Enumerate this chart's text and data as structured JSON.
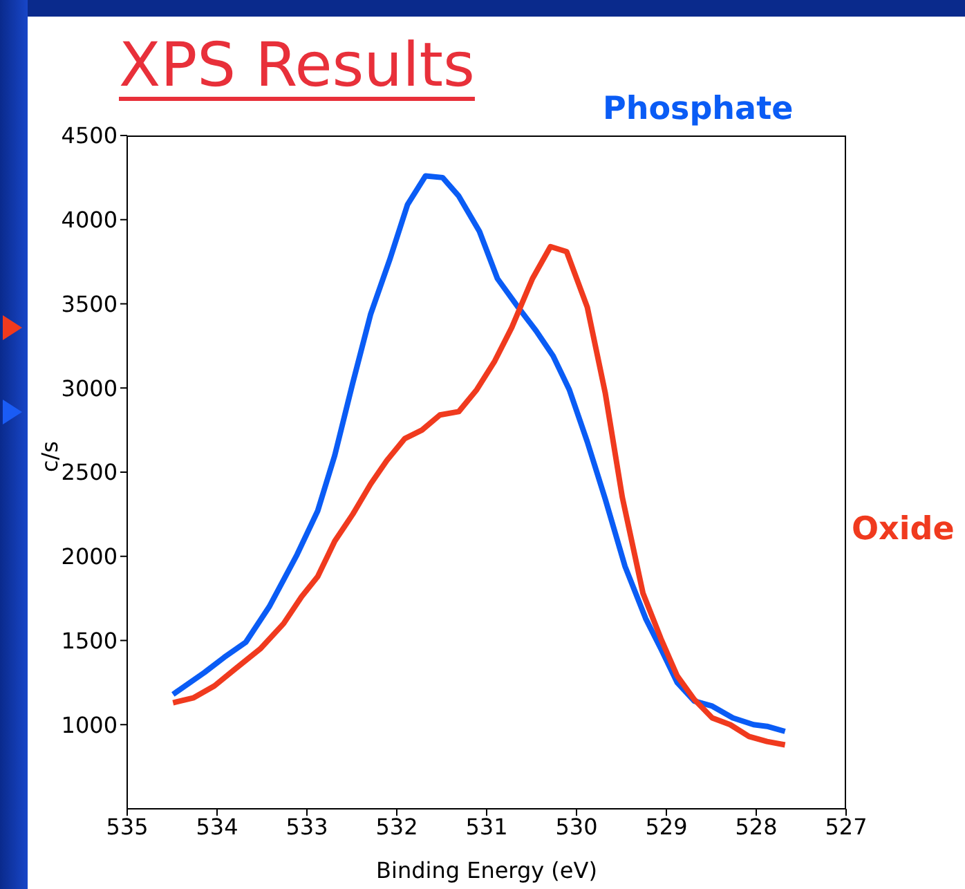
{
  "chart_data": {
    "type": "line",
    "title": "XPS Results",
    "xlabel": "Binding Energy (eV)",
    "ylabel": "c/s",
    "xlim": [
      535,
      527
    ],
    "xticks": [
      535,
      534,
      533,
      532,
      531,
      530,
      529,
      528,
      527
    ],
    "ylim": [
      500,
      4500
    ],
    "yticks": [
      1000,
      1500,
      2000,
      2500,
      3000,
      3500,
      4000,
      4500
    ],
    "marker": "none",
    "line_style": "solid",
    "series": [
      {
        "name": "Phosphate",
        "color": "#0a5cf5",
        "x": [
          534.49,
          534.14,
          533.92,
          533.68,
          533.42,
          533.11,
          532.88,
          532.69,
          532.49,
          532.29,
          532.08,
          531.88,
          531.68,
          531.49,
          531.31,
          531.08,
          530.88,
          530.65,
          530.45,
          530.26,
          530.08,
          529.88,
          529.68,
          529.46,
          529.23,
          529.06,
          528.88,
          528.69,
          528.49,
          528.26,
          528.03,
          527.88,
          527.68
        ],
        "values": [
          1180,
          1310,
          1400,
          1490,
          1700,
          2010,
          2270,
          2600,
          3030,
          3440,
          3760,
          4090,
          4260,
          4250,
          4140,
          3930,
          3650,
          3480,
          3340,
          3190,
          2990,
          2680,
          2340,
          1940,
          1630,
          1450,
          1250,
          1140,
          1110,
          1040,
          1000,
          990,
          960
        ]
      },
      {
        "name": "Oxide",
        "color": "#f03a1e",
        "x": [
          534.49,
          534.26,
          534.03,
          533.8,
          533.52,
          533.26,
          533.06,
          532.88,
          532.69,
          532.49,
          532.29,
          532.11,
          531.91,
          531.72,
          531.52,
          531.31,
          531.11,
          530.91,
          530.72,
          530.49,
          530.29,
          530.11,
          529.88,
          529.68,
          529.49,
          529.26,
          529.06,
          528.88,
          528.69,
          528.49,
          528.29,
          528.08,
          527.88,
          527.68
        ],
        "values": [
          1130,
          1160,
          1230,
          1330,
          1450,
          1600,
          1760,
          1880,
          2090,
          2250,
          2430,
          2570,
          2700,
          2750,
          2840,
          2860,
          2990,
          3160,
          3360,
          3650,
          3840,
          3810,
          3480,
          2970,
          2350,
          1780,
          1510,
          1290,
          1150,
          1040,
          1000,
          930,
          900,
          880
        ]
      }
    ]
  }
}
